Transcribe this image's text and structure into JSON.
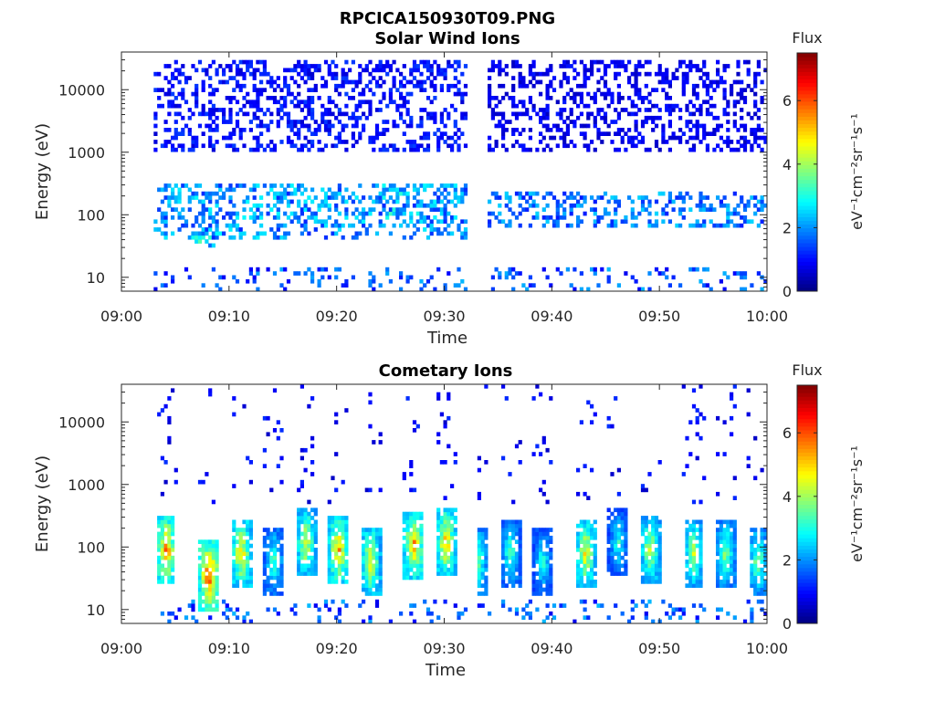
{
  "figure": {
    "title": "RPCICA150930T09.PNG"
  },
  "colorbar": {
    "label": "Flux",
    "unit_label": "eV⁻¹cm⁻²sr⁻¹s⁻¹",
    "range": [
      0,
      7.5
    ],
    "ticks": [
      "0",
      "2",
      "4",
      "6"
    ],
    "colormap": "jet"
  },
  "chart_data": [
    {
      "type": "heatmap",
      "title": "Solar Wind Ions",
      "xlabel": "Time",
      "ylabel": "Energy (eV)",
      "x_range": [
        "09:00",
        "10:00"
      ],
      "x_ticks": [
        "09:00",
        "09:10",
        "09:20",
        "09:30",
        "09:40",
        "09:50",
        "10:00"
      ],
      "y_scale": "log",
      "y_range": [
        6,
        40000
      ],
      "y_ticks": [
        "10",
        "100",
        "1000",
        "10000"
      ],
      "z_range": [
        0,
        7.5
      ],
      "data_gap": [
        "09:32",
        "09:34"
      ],
      "features": [
        {
          "time": [
            "09:03",
            "09:32"
          ],
          "energy": [
            1000,
            30000
          ],
          "flux": 1.0
        },
        {
          "time": [
            "09:03",
            "09:32"
          ],
          "energy": [
            40,
            300
          ],
          "flux": 2.0
        },
        {
          "time": [
            "09:06",
            "09:09"
          ],
          "energy": [
            30,
            60
          ],
          "flux": 2.6
        },
        {
          "time": [
            "09:24",
            "09:28"
          ],
          "energy": [
            80,
            300
          ],
          "flux": 2.4
        },
        {
          "time": [
            "09:34",
            "10:00"
          ],
          "energy": [
            1000,
            30000
          ],
          "flux": 0.8
        },
        {
          "time": [
            "09:34",
            "10:00"
          ],
          "energy": [
            60,
            250
          ],
          "flux": 1.8
        }
      ]
    },
    {
      "type": "heatmap",
      "title": "Cometary Ions",
      "xlabel": "Time",
      "ylabel": "Energy (eV)",
      "x_range": [
        "09:00",
        "10:00"
      ],
      "x_ticks": [
        "09:00",
        "09:10",
        "09:20",
        "09:30",
        "09:40",
        "09:50",
        "10:00"
      ],
      "y_scale": "log",
      "y_range": [
        6,
        40000
      ],
      "y_ticks": [
        "10",
        "100",
        "1000",
        "10000"
      ],
      "z_range": [
        0,
        7.5
      ],
      "data_gap": [
        "09:32",
        "09:33"
      ],
      "bursts": [
        {
          "time": "09:04",
          "energy_peak": 90,
          "flux_peak": 5.8
        },
        {
          "time": "09:08",
          "energy_peak": 35,
          "flux_peak": 6.5
        },
        {
          "time": "09:11",
          "energy_peak": 80,
          "flux_peak": 5.2
        },
        {
          "time": "09:14",
          "energy_peak": 60,
          "flux_peak": 3.5
        },
        {
          "time": "09:17",
          "energy_peak": 120,
          "flux_peak": 4.8
        },
        {
          "time": "09:20",
          "energy_peak": 90,
          "flux_peak": 5.5
        },
        {
          "time": "09:23",
          "energy_peak": 60,
          "flux_peak": 5.0
        },
        {
          "time": "09:27",
          "energy_peak": 110,
          "flux_peak": 5.6
        },
        {
          "time": "09:30",
          "energy_peak": 120,
          "flux_peak": 5.3
        },
        {
          "time": "09:33",
          "energy_peak": 60,
          "flux_peak": 3.8
        },
        {
          "time": "09:36",
          "energy_peak": 80,
          "flux_peak": 3.5
        },
        {
          "time": "09:39",
          "energy_peak": 60,
          "flux_peak": 3.2
        },
        {
          "time": "09:43",
          "energy_peak": 80,
          "flux_peak": 5.0
        },
        {
          "time": "09:46",
          "energy_peak": 120,
          "flux_peak": 3.2
        },
        {
          "time": "09:49",
          "energy_peak": 90,
          "flux_peak": 4.6
        },
        {
          "time": "09:53",
          "energy_peak": 80,
          "flux_peak": 4.4
        },
        {
          "time": "09:56",
          "energy_peak": 80,
          "flux_peak": 4.0
        },
        {
          "time": "09:59",
          "energy_peak": 60,
          "flux_peak": 4.0
        }
      ]
    }
  ]
}
